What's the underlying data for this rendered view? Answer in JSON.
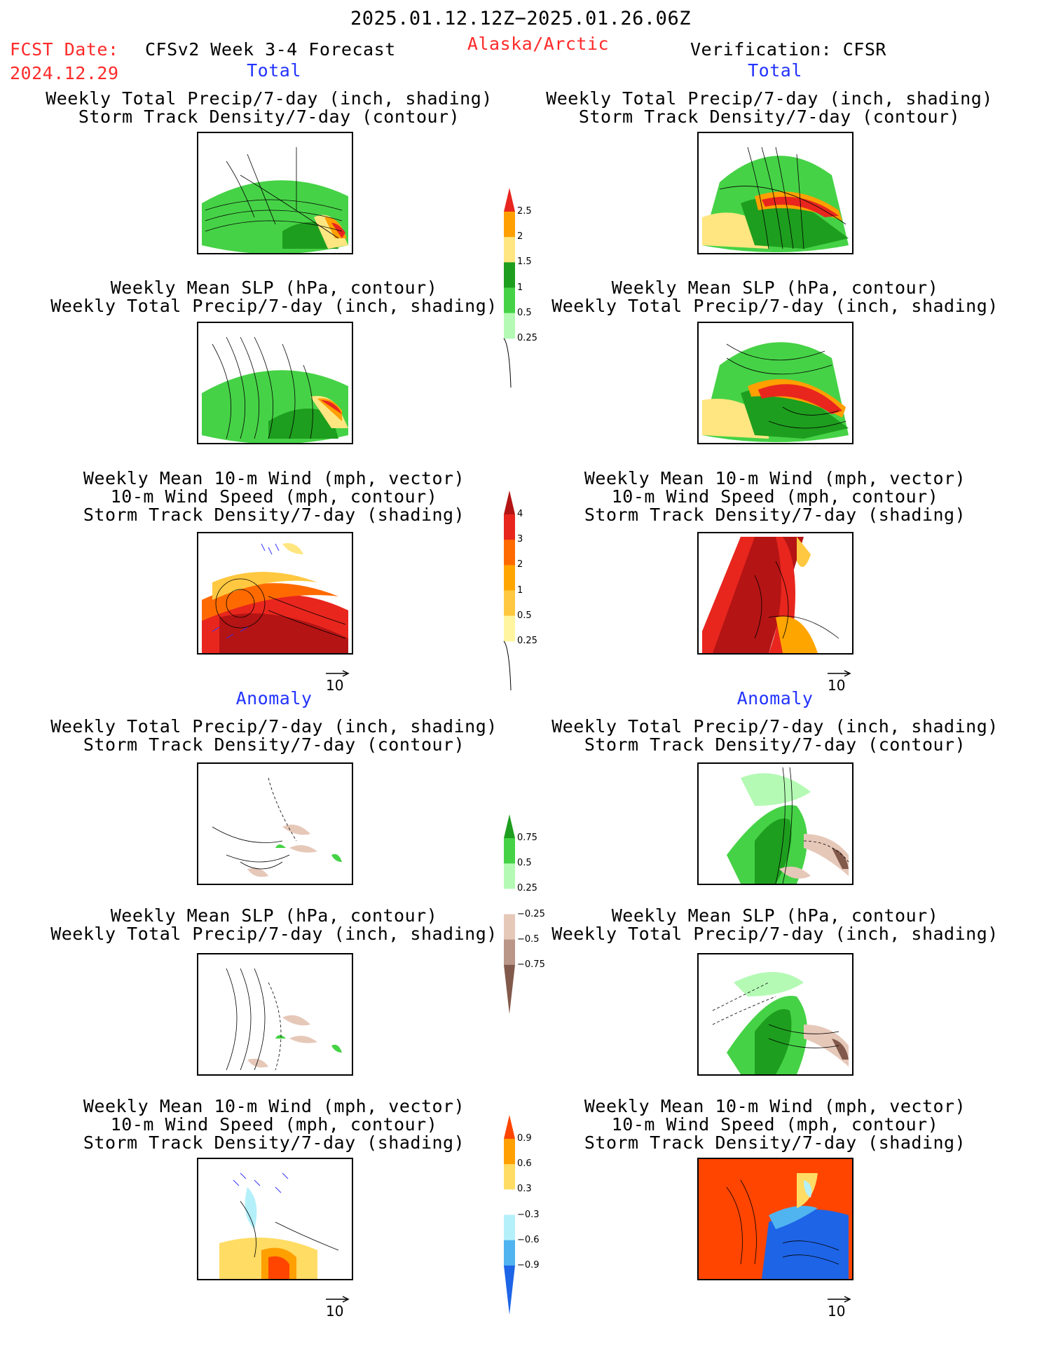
{
  "header": {
    "period": "2025.01.12.12Z−2025.01.26.06Z",
    "fcst_label": "FCST Date:",
    "fcst_date": "2024.12.29",
    "model": "CFSv2 Week 3-4 Forecast",
    "region": "Alaska/Arctic",
    "verification": "Verification: CFSR"
  },
  "sections": {
    "total": "Total",
    "anomaly": "Anomaly"
  },
  "titles": {
    "precip_track": [
      "Weekly Total Precip/7-day (inch, shading)",
      "Storm Track Density/7-day (contour)"
    ],
    "slp_precip": [
      "Weekly Mean SLP (hPa, contour)",
      "Weekly Total Precip/7-day (inch, shading)"
    ],
    "wind_track": [
      "Weekly Mean 10-m Wind (mph, vector)",
      "10-m Wind Speed (mph, contour)",
      "Storm Track Density/7-day (shading)"
    ]
  },
  "ref_vector": "10",
  "colorbars": {
    "precip_total": {
      "levels": [
        "2.5",
        "2",
        "1.5",
        "1",
        "0.5",
        "0.25"
      ],
      "colors": [
        "#e8261e",
        "#ff9f00",
        "#ffe680",
        "#1e9e1e",
        "#46d246",
        "#b4fab4"
      ]
    },
    "track_total": {
      "levels": [
        "4",
        "3",
        "2",
        "1",
        "0.5",
        "0.25"
      ],
      "colors": [
        "#b41414",
        "#e8261e",
        "#ff6a00",
        "#ffa500",
        "#ffc840",
        "#fff5a0"
      ]
    },
    "precip_anom": {
      "levels": [
        "0.75",
        "0.5",
        "0.25",
        "−0.25",
        "−0.5",
        "−0.75"
      ],
      "colors": [
        "#1e9e1e",
        "#46d246",
        "#b4fab4",
        "#ffffff",
        "#e6c8b9",
        "#b99687",
        "#825a4b"
      ]
    },
    "track_anom": {
      "levels": [
        "0.9",
        "0.6",
        "0.3",
        "−0.3",
        "−0.6",
        "−0.9"
      ],
      "colors": [
        "#ff4500",
        "#ff9f00",
        "#ffdc64",
        "#ffffff",
        "#b4f0fa",
        "#50b4f0",
        "#1e64e6"
      ]
    }
  }
}
